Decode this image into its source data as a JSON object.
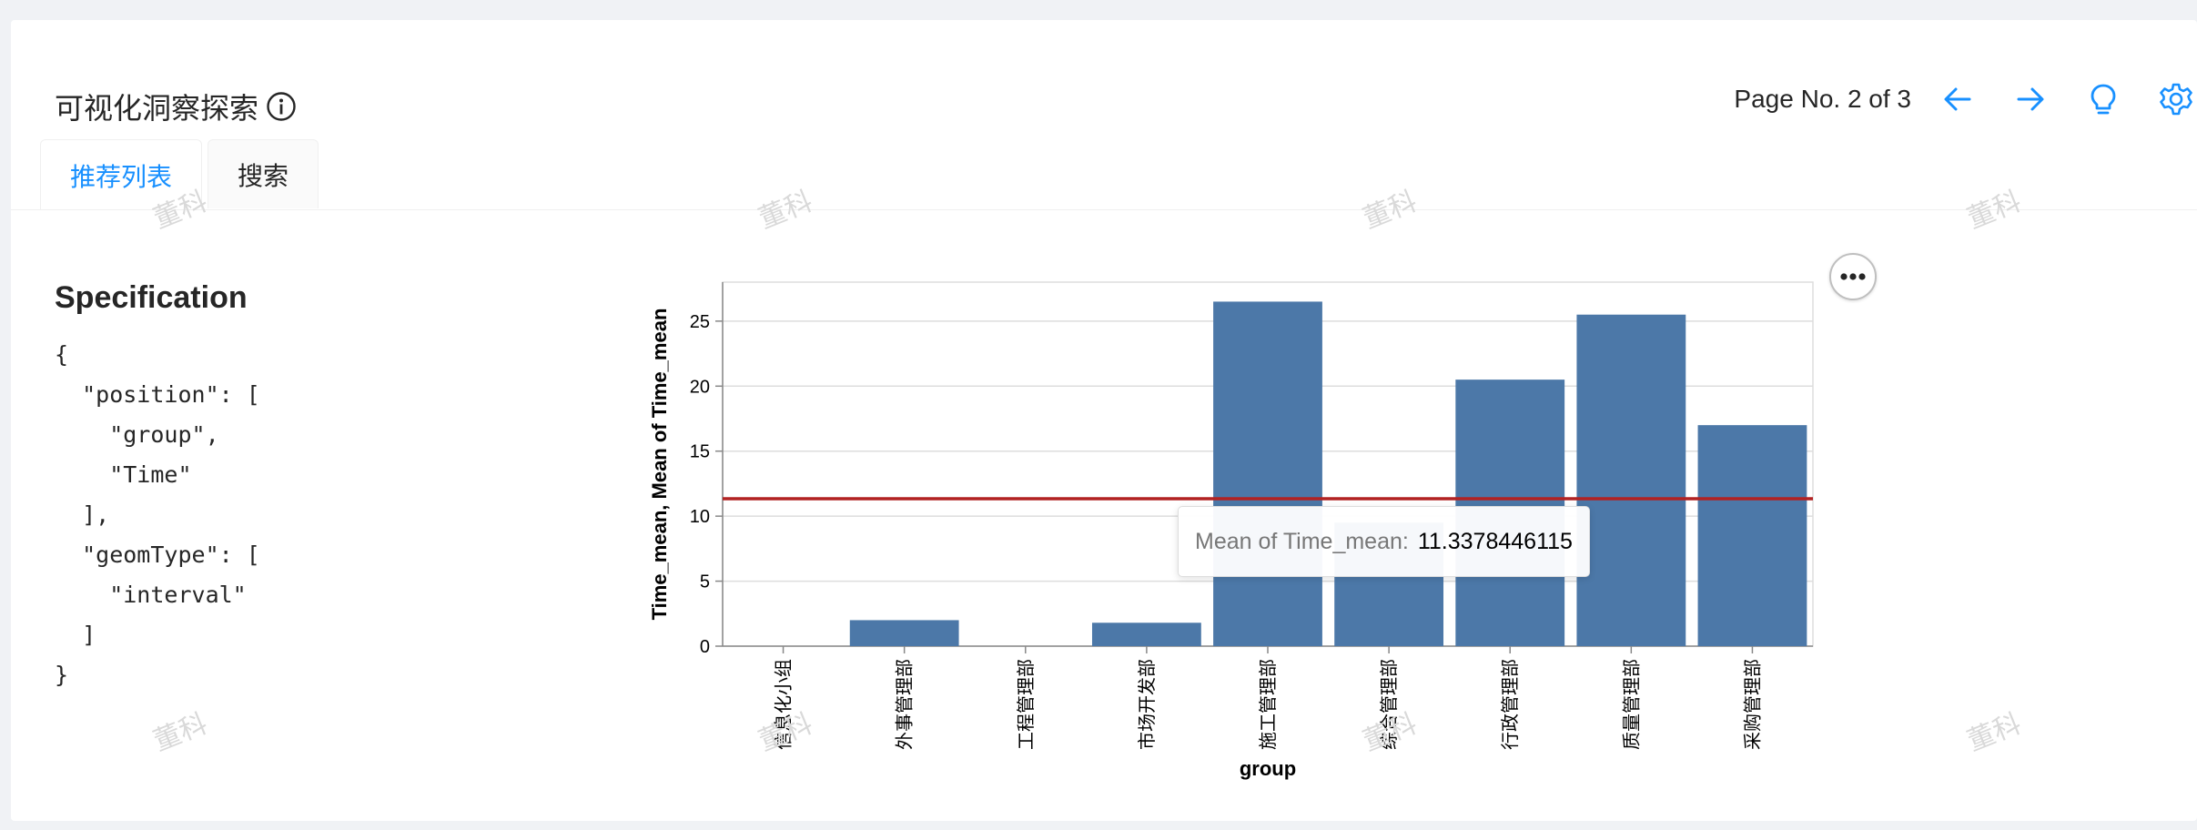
{
  "header": {
    "title": "可视化洞察探索",
    "page_label": "Page No. 2 of 3"
  },
  "icons": {
    "info": "info-circle-icon",
    "prev": "arrow-left-icon",
    "next": "arrow-right-icon",
    "insight": "lightbulb-icon",
    "settings": "gear-icon",
    "more": "more-horizontal-icon"
  },
  "tabs": [
    {
      "label": "推荐列表",
      "active": true
    },
    {
      "label": "搜索",
      "active": false
    }
  ],
  "spec": {
    "title": "Specification",
    "code": "{\n  \"position\": [\n    \"group\",\n    \"Time\"\n  ],\n  \"geomType\": [\n    \"interval\"\n  ]\n}"
  },
  "watermark": "董科",
  "colors": {
    "accent": "#1890ff",
    "bar": "#4c78a8",
    "rule": "#b22222"
  },
  "chart_data": {
    "type": "bar",
    "categories": [
      "信息化小组",
      "外事管理部",
      "工程管理部",
      "市场开发部",
      "施工管理部",
      "综合管理部",
      "行政管理部",
      "质量管理部",
      "采购管理部"
    ],
    "values": [
      0,
      2.0,
      0,
      1.8,
      26.5,
      9.5,
      20.5,
      25.5,
      17.0
    ],
    "mean_rule": 11.3378446115,
    "xlabel": "group",
    "ylabel": "Time_mean, Mean of Time_mean",
    "ylim": [
      0,
      28
    ],
    "yticks": [
      0,
      5,
      10,
      15,
      20,
      25
    ],
    "grid": true
  },
  "tooltip": {
    "key": "Mean of Time_mean:",
    "value": "11.3378446115"
  }
}
